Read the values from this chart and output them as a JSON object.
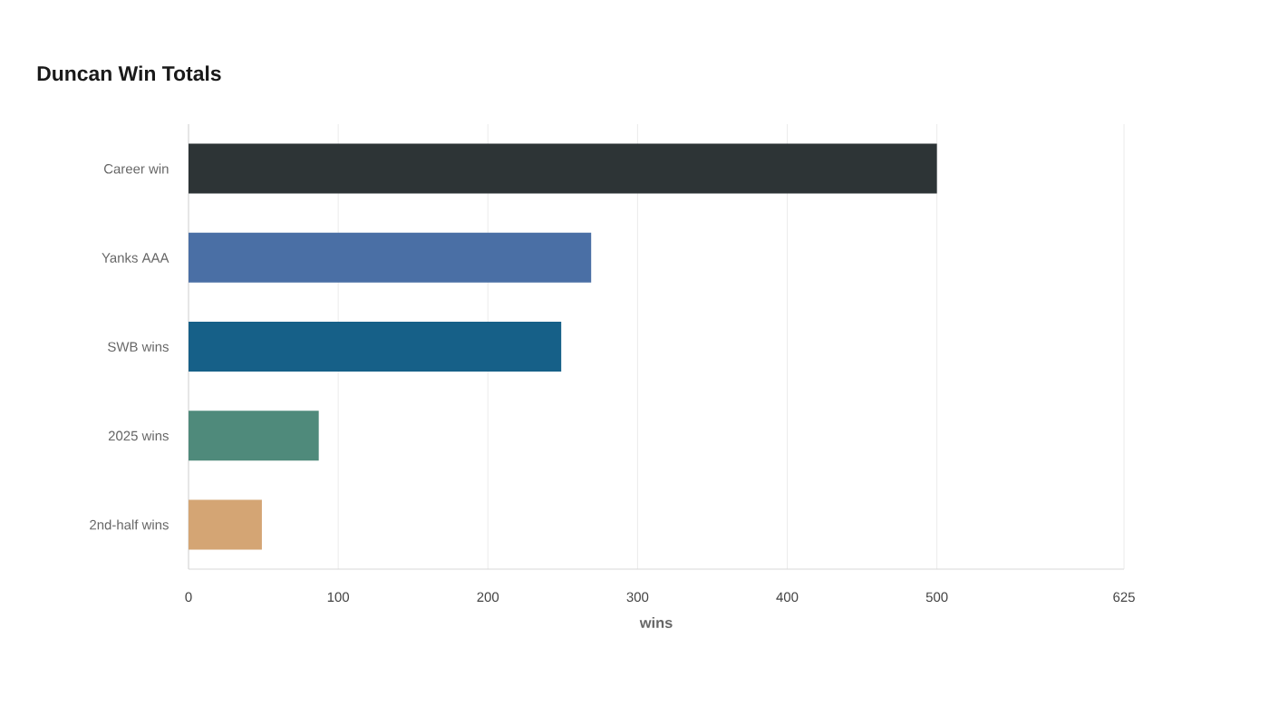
{
  "chart_data": {
    "type": "bar",
    "orientation": "horizontal",
    "title": "Duncan Win Totals",
    "xlabel": "wins",
    "categories": [
      "Career win",
      "Yanks AAA",
      "SWB wins",
      "2025 wins",
      "2nd-half wins"
    ],
    "values": [
      500,
      269,
      249,
      87,
      49
    ],
    "colors": [
      "#2d3436",
      "#4a6fa5",
      "#166088",
      "#4f8a7b",
      "#d4a574"
    ],
    "xlim": [
      0,
      625
    ],
    "xticks": [
      0,
      100,
      200,
      300,
      400,
      500,
      625
    ],
    "grid": "x"
  }
}
